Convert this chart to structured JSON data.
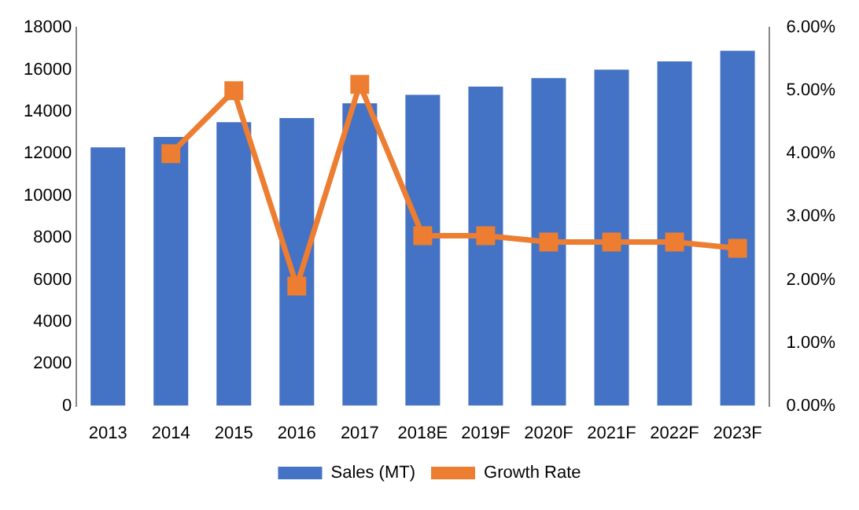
{
  "chart_data": {
    "type": "bar",
    "categories": [
      "2013",
      "2014",
      "2015",
      "2016",
      "2017",
      "2018E",
      "2019F",
      "2020F",
      "2021F",
      "2022F",
      "2023F"
    ],
    "series": [
      {
        "name": "Sales (MT)",
        "color": "#4472c4",
        "values": [
          12300,
          12800,
          13500,
          13700,
          14400,
          14800,
          15200,
          15600,
          16000,
          16400,
          16900
        ]
      },
      {
        "name": "Growth Rate",
        "type": "line",
        "axis": "y2",
        "color": "#ed7d31",
        "marker": "square",
        "values": [
          null,
          4.0,
          5.0,
          1.9,
          5.1,
          2.7,
          2.7,
          2.6,
          2.6,
          2.6,
          2.5
        ]
      }
    ],
    "ylim": [
      0,
      18000
    ],
    "yticks": [
      0,
      2000,
      4000,
      6000,
      8000,
      10000,
      12000,
      14000,
      16000,
      18000
    ],
    "y2lim": [
      0,
      6
    ],
    "y2ticks": [
      {
        "value": 0,
        "label": "0.00%"
      },
      {
        "value": 1,
        "label": "1.00%"
      },
      {
        "value": 2,
        "label": "2.00%"
      },
      {
        "value": 3,
        "label": "3.00%"
      },
      {
        "value": 4,
        "label": "4.00%"
      },
      {
        "value": 5,
        "label": "5.00%"
      },
      {
        "value": 6,
        "label": "6.00%"
      }
    ],
    "grid": false,
    "legend": "bottom"
  }
}
